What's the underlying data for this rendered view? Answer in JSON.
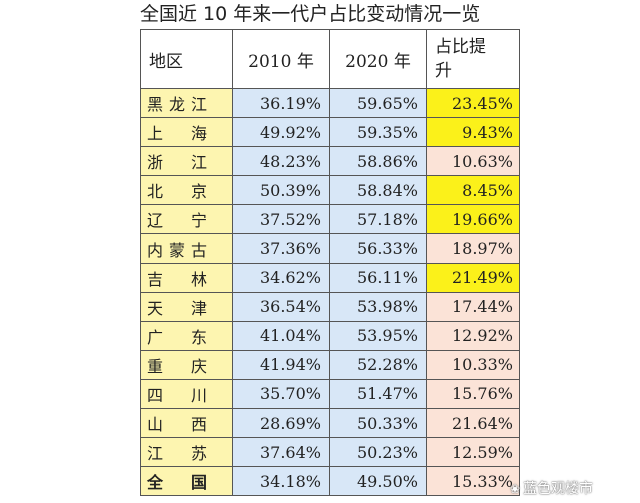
{
  "title": "全国近 10 年来一代户占比变动情况一览",
  "headers": {
    "region": "地区",
    "y2010": "2010 年",
    "y2020": "2020 年",
    "rise": "占比提升"
  },
  "colors": {
    "region_bg": "#fdf5b0",
    "year_bg": "#d8e7f7",
    "rise_high_bg": "#fbf11a",
    "rise_low_bg": "#fbe3d7"
  },
  "rows": [
    {
      "region": "黑龙江",
      "y2010": "36.19%",
      "y2020": "59.65%",
      "rise": "23.45%",
      "highlight": true
    },
    {
      "region": "上　海",
      "y2010": "49.92%",
      "y2020": "59.35%",
      "rise": "9.43%",
      "highlight": true
    },
    {
      "region": "浙　江",
      "y2010": "48.23%",
      "y2020": "58.86%",
      "rise": "10.63%",
      "highlight": false
    },
    {
      "region": "北　京",
      "y2010": "50.39%",
      "y2020": "58.84%",
      "rise": "8.45%",
      "highlight": true
    },
    {
      "region": "辽　宁",
      "y2010": "37.52%",
      "y2020": "57.18%",
      "rise": "19.66%",
      "highlight": true
    },
    {
      "region": "内蒙古",
      "y2010": "37.36%",
      "y2020": "56.33%",
      "rise": "18.97%",
      "highlight": false
    },
    {
      "region": "吉　林",
      "y2010": "34.62%",
      "y2020": "56.11%",
      "rise": "21.49%",
      "highlight": true
    },
    {
      "region": "天　津",
      "y2010": "36.54%",
      "y2020": "53.98%",
      "rise": "17.44%",
      "highlight": false
    },
    {
      "region": "广　东",
      "y2010": "41.04%",
      "y2020": "53.95%",
      "rise": "12.92%",
      "highlight": false
    },
    {
      "region": "重　庆",
      "y2010": "41.94%",
      "y2020": "52.28%",
      "rise": "10.33%",
      "highlight": false
    },
    {
      "region": "四　川",
      "y2010": "35.70%",
      "y2020": "51.47%",
      "rise": "15.76%",
      "highlight": false
    },
    {
      "region": "山　西",
      "y2010": "28.69%",
      "y2020": "50.33%",
      "rise": "21.64%",
      "highlight": false
    },
    {
      "region": "江　苏",
      "y2010": "37.64%",
      "y2020": "50.23%",
      "rise": "12.59%",
      "highlight": false
    },
    {
      "region": "全　国",
      "y2010": "34.18%",
      "y2020": "49.50%",
      "rise": "15.33%",
      "highlight": false,
      "total": true
    }
  ],
  "watermark": {
    "icon": "paw-icon",
    "text": "蓝色观楼市"
  }
}
